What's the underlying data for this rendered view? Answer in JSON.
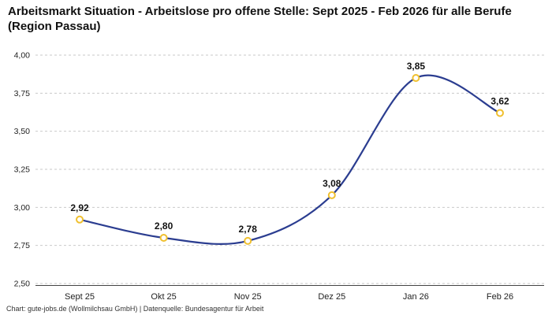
{
  "header": {
    "title": "Arbeitsmarkt Situation - Arbeitslose pro offene Stelle: Sept 2025 - Feb 2026 für alle Berufe (Region Passau)"
  },
  "footer": {
    "text": "Chart: gute-jobs.de (Wollmilchsau GmbH) | Datenquelle: Bundesagentur für Arbeit"
  },
  "chart_data": {
    "type": "line",
    "title": "Arbeitsmarkt Situation - Arbeitslose pro offene Stelle: Sept 2025 - Feb 2026 für alle Berufe (Region Passau)",
    "categories": [
      "Sept 25",
      "Okt 25",
      "Nov 25",
      "Dez 25",
      "Jan 26",
      "Feb 26"
    ],
    "values": [
      2.92,
      2.8,
      2.78,
      3.08,
      3.85,
      3.62
    ],
    "value_labels": [
      "2,92",
      "2,80",
      "2,78",
      "3,08",
      "3,85",
      "3,62"
    ],
    "xlabel": "",
    "ylabel": "",
    "ylim": [
      2.5,
      4.0
    ],
    "yticks": [
      2.5,
      2.75,
      3.0,
      3.25,
      3.5,
      3.75,
      4.0
    ],
    "ytick_labels": [
      "2,50",
      "2,75",
      "3,00",
      "3,25",
      "3,50",
      "3,75",
      "4,00"
    ],
    "grid": "horizontal-dashed",
    "legend": "none",
    "colors": {
      "line": "#2b3d90",
      "marker_fill": "#ffffff",
      "marker_stroke": "#f0c02f",
      "grid": "#c9c9c9",
      "axis": "#444444",
      "tick_text": "#222222",
      "value_text": "#111111"
    }
  }
}
